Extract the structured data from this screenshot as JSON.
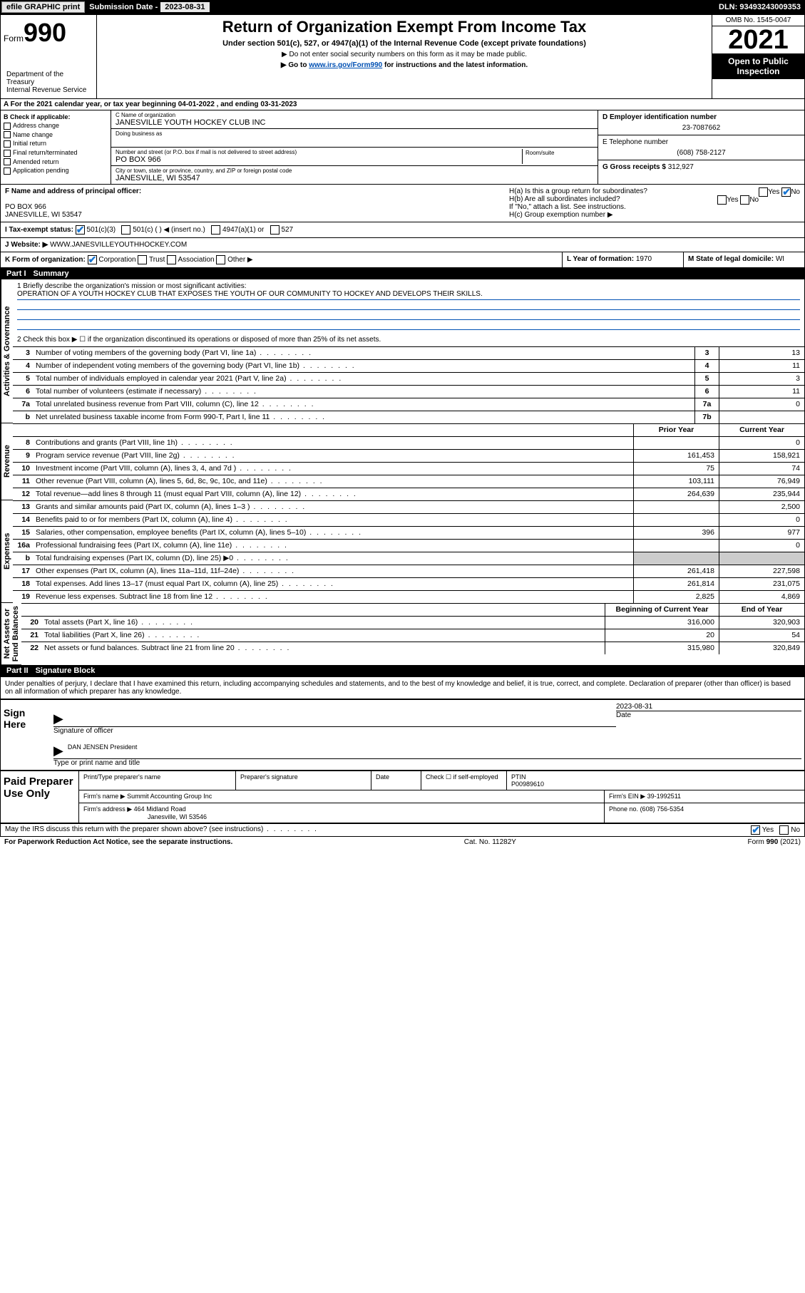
{
  "topbar": {
    "efile_btn": "efile GRAPHIC print",
    "sub_label": "Submission Date - ",
    "sub_date": "2023-08-31",
    "dln": "DLN: 93493243009353"
  },
  "header": {
    "form_prefix": "Form",
    "form_num": "990",
    "title": "Return of Organization Exempt From Income Tax",
    "subtitle": "Under section 501(c), 527, or 4947(a)(1) of the Internal Revenue Code (except private foundations)",
    "note1": "▶ Do not enter social security numbers on this form as it may be made public.",
    "note2_pre": "▶ Go to ",
    "note2_link": "www.irs.gov/Form990",
    "note2_post": " for instructions and the latest information.",
    "dept": "Department of the Treasury\nInternal Revenue Service",
    "omb": "OMB No. 1545-0047",
    "year": "2021",
    "inspection": "Open to Public Inspection"
  },
  "row_a": "A For the 2021 calendar year, or tax year beginning 04-01-2022  , and ending 03-31-2023",
  "box_b": {
    "title": "B Check if applicable:",
    "items": [
      "Address change",
      "Name change",
      "Initial return",
      "Final return/terminated",
      "Amended return",
      "Application pending"
    ]
  },
  "box_c": {
    "name_label": "C Name of organization",
    "name": "JANESVILLE YOUTH HOCKEY CLUB INC",
    "dba_label": "Doing business as",
    "dba": "",
    "street_label": "Number and street (or P.O. box if mail is not delivered to street address)",
    "room_label": "Room/suite",
    "street": "PO BOX 966",
    "city_label": "City or town, state or province, country, and ZIP or foreign postal code",
    "city": "JANESVILLE, WI  53547"
  },
  "box_d": {
    "label": "D Employer identification number",
    "val": "23-7087662"
  },
  "box_e": {
    "label": "E Telephone number",
    "val": "(608) 758-2127"
  },
  "box_g": {
    "label": "G Gross receipts $",
    "val": "312,927"
  },
  "box_f": {
    "label": "F  Name and address of principal officer:",
    "addr1": "PO BOX 966",
    "addr2": "JANESVILLE, WI  53547"
  },
  "box_h": {
    "ha": "H(a)  Is this a group return for subordinates?",
    "hb": "H(b)  Are all subordinates included?",
    "hb_note": "If \"No,\" attach a list. See instructions.",
    "hc": "H(c)  Group exemption number ▶"
  },
  "box_i": {
    "label": "I  Tax-exempt status:",
    "opts": [
      "501(c)(3)",
      "501(c) (  ) ◀ (insert no.)",
      "4947(a)(1) or",
      "527"
    ]
  },
  "box_j": {
    "label": "J  Website: ▶",
    "val": "WWW.JANESVILLEYOUTHHOCKEY.COM"
  },
  "box_k": {
    "label": "K Form of organization:",
    "opts": [
      "Corporation",
      "Trust",
      "Association",
      "Other ▶"
    ]
  },
  "box_l": {
    "label": "L Year of formation:",
    "val": "1970"
  },
  "box_m": {
    "label": "M State of legal domicile:",
    "val": "WI"
  },
  "part1": {
    "num": "Part I",
    "title": "Summary"
  },
  "mission": {
    "q": "1   Briefly describe the organization's mission or most significant activities:",
    "text": "OPERATION OF A YOUTH HOCKEY CLUB THAT EXPOSES THE YOUTH OF OUR COMMUNITY TO HOCKEY AND DEVELOPS THEIR SKILLS."
  },
  "line2": "2   Check this box ▶ ☐  if the organization discontinued its operations or disposed of more than 25% of its net assets.",
  "gov_rows": [
    {
      "n": "3",
      "d": "Number of voting members of the governing body (Part VI, line 1a)",
      "c": "3",
      "v": "13"
    },
    {
      "n": "4",
      "d": "Number of independent voting members of the governing body (Part VI, line 1b)",
      "c": "4",
      "v": "11"
    },
    {
      "n": "5",
      "d": "Total number of individuals employed in calendar year 2021 (Part V, line 2a)",
      "c": "5",
      "v": "3"
    },
    {
      "n": "6",
      "d": "Total number of volunteers (estimate if necessary)",
      "c": "6",
      "v": "11"
    },
    {
      "n": "7a",
      "d": "Total unrelated business revenue from Part VIII, column (C), line 12",
      "c": "7a",
      "v": "0"
    },
    {
      "n": "b",
      "d": "Net unrelated business taxable income from Form 990-T, Part I, line 11",
      "c": "7b",
      "v": ""
    }
  ],
  "pycy_head": {
    "py": "Prior Year",
    "cy": "Current Year"
  },
  "rev_rows": [
    {
      "n": "8",
      "d": "Contributions and grants (Part VIII, line 1h)",
      "py": "",
      "cy": "0"
    },
    {
      "n": "9",
      "d": "Program service revenue (Part VIII, line 2g)",
      "py": "161,453",
      "cy": "158,921"
    },
    {
      "n": "10",
      "d": "Investment income (Part VIII, column (A), lines 3, 4, and 7d )",
      "py": "75",
      "cy": "74"
    },
    {
      "n": "11",
      "d": "Other revenue (Part VIII, column (A), lines 5, 6d, 8c, 9c, 10c, and 11e)",
      "py": "103,111",
      "cy": "76,949"
    },
    {
      "n": "12",
      "d": "Total revenue—add lines 8 through 11 (must equal Part VIII, column (A), line 12)",
      "py": "264,639",
      "cy": "235,944"
    }
  ],
  "exp_rows": [
    {
      "n": "13",
      "d": "Grants and similar amounts paid (Part IX, column (A), lines 1–3 )",
      "py": "",
      "cy": "2,500"
    },
    {
      "n": "14",
      "d": "Benefits paid to or for members (Part IX, column (A), line 4)",
      "py": "",
      "cy": "0"
    },
    {
      "n": "15",
      "d": "Salaries, other compensation, employee benefits (Part IX, column (A), lines 5–10)",
      "py": "396",
      "cy": "977"
    },
    {
      "n": "16a",
      "d": "Professional fundraising fees (Part IX, column (A), line 11e)",
      "py": "",
      "cy": "0"
    },
    {
      "n": "b",
      "d": "Total fundraising expenses (Part IX, column (D), line 25) ▶0",
      "py": "shaded",
      "cy": "shaded"
    },
    {
      "n": "17",
      "d": "Other expenses (Part IX, column (A), lines 11a–11d, 11f–24e)",
      "py": "261,418",
      "cy": "227,598"
    },
    {
      "n": "18",
      "d": "Total expenses. Add lines 13–17 (must equal Part IX, column (A), line 25)",
      "py": "261,814",
      "cy": "231,075"
    },
    {
      "n": "19",
      "d": "Revenue less expenses. Subtract line 18 from line 12",
      "py": "2,825",
      "cy": "4,869"
    }
  ],
  "na_head": {
    "b": "Beginning of Current Year",
    "e": "End of Year"
  },
  "na_rows": [
    {
      "n": "20",
      "d": "Total assets (Part X, line 16)",
      "py": "316,000",
      "cy": "320,903"
    },
    {
      "n": "21",
      "d": "Total liabilities (Part X, line 26)",
      "py": "20",
      "cy": "54"
    },
    {
      "n": "22",
      "d": "Net assets or fund balances. Subtract line 21 from line 20",
      "py": "315,980",
      "cy": "320,849"
    }
  ],
  "vlabels": {
    "gov": "Activities & Governance",
    "rev": "Revenue",
    "exp": "Expenses",
    "na": "Net Assets or\nFund Balances"
  },
  "part2": {
    "num": "Part II",
    "title": "Signature Block"
  },
  "penalties": "Under penalties of perjury, I declare that I have examined this return, including accompanying schedules and statements, and to the best of my knowledge and belief, it is true, correct, and complete. Declaration of preparer (other than officer) is based on all information of which preparer has any knowledge.",
  "sign": {
    "here": "Sign Here",
    "sig_label": "Signature of officer",
    "date_label": "Date",
    "date": "2023-08-31",
    "name": "DAN JENSEN  President",
    "name_label": "Type or print name and title"
  },
  "preparer": {
    "label": "Paid Preparer Use Only",
    "h1": "Print/Type preparer's name",
    "h2": "Preparer's signature",
    "h3": "Date",
    "h4": "Check ☐ if self-employed",
    "h5": "PTIN",
    "ptin": "P00989610",
    "firm_name_l": "Firm's name   ▶",
    "firm_name": "Summit Accounting Group Inc",
    "firm_ein_l": "Firm's EIN ▶",
    "firm_ein": "39-1992511",
    "firm_addr_l": "Firm's address ▶",
    "firm_addr1": "464 Midland Road",
    "firm_addr2": "Janesville, WI  53546",
    "phone_l": "Phone no.",
    "phone": "(608) 756-5354"
  },
  "discuss": "May the IRS discuss this return with the preparer shown above? (see instructions)",
  "footer": {
    "l": "For Paperwork Reduction Act Notice, see the separate instructions.",
    "m": "Cat. No. 11282Y",
    "r": "Form 990 (2021)"
  }
}
